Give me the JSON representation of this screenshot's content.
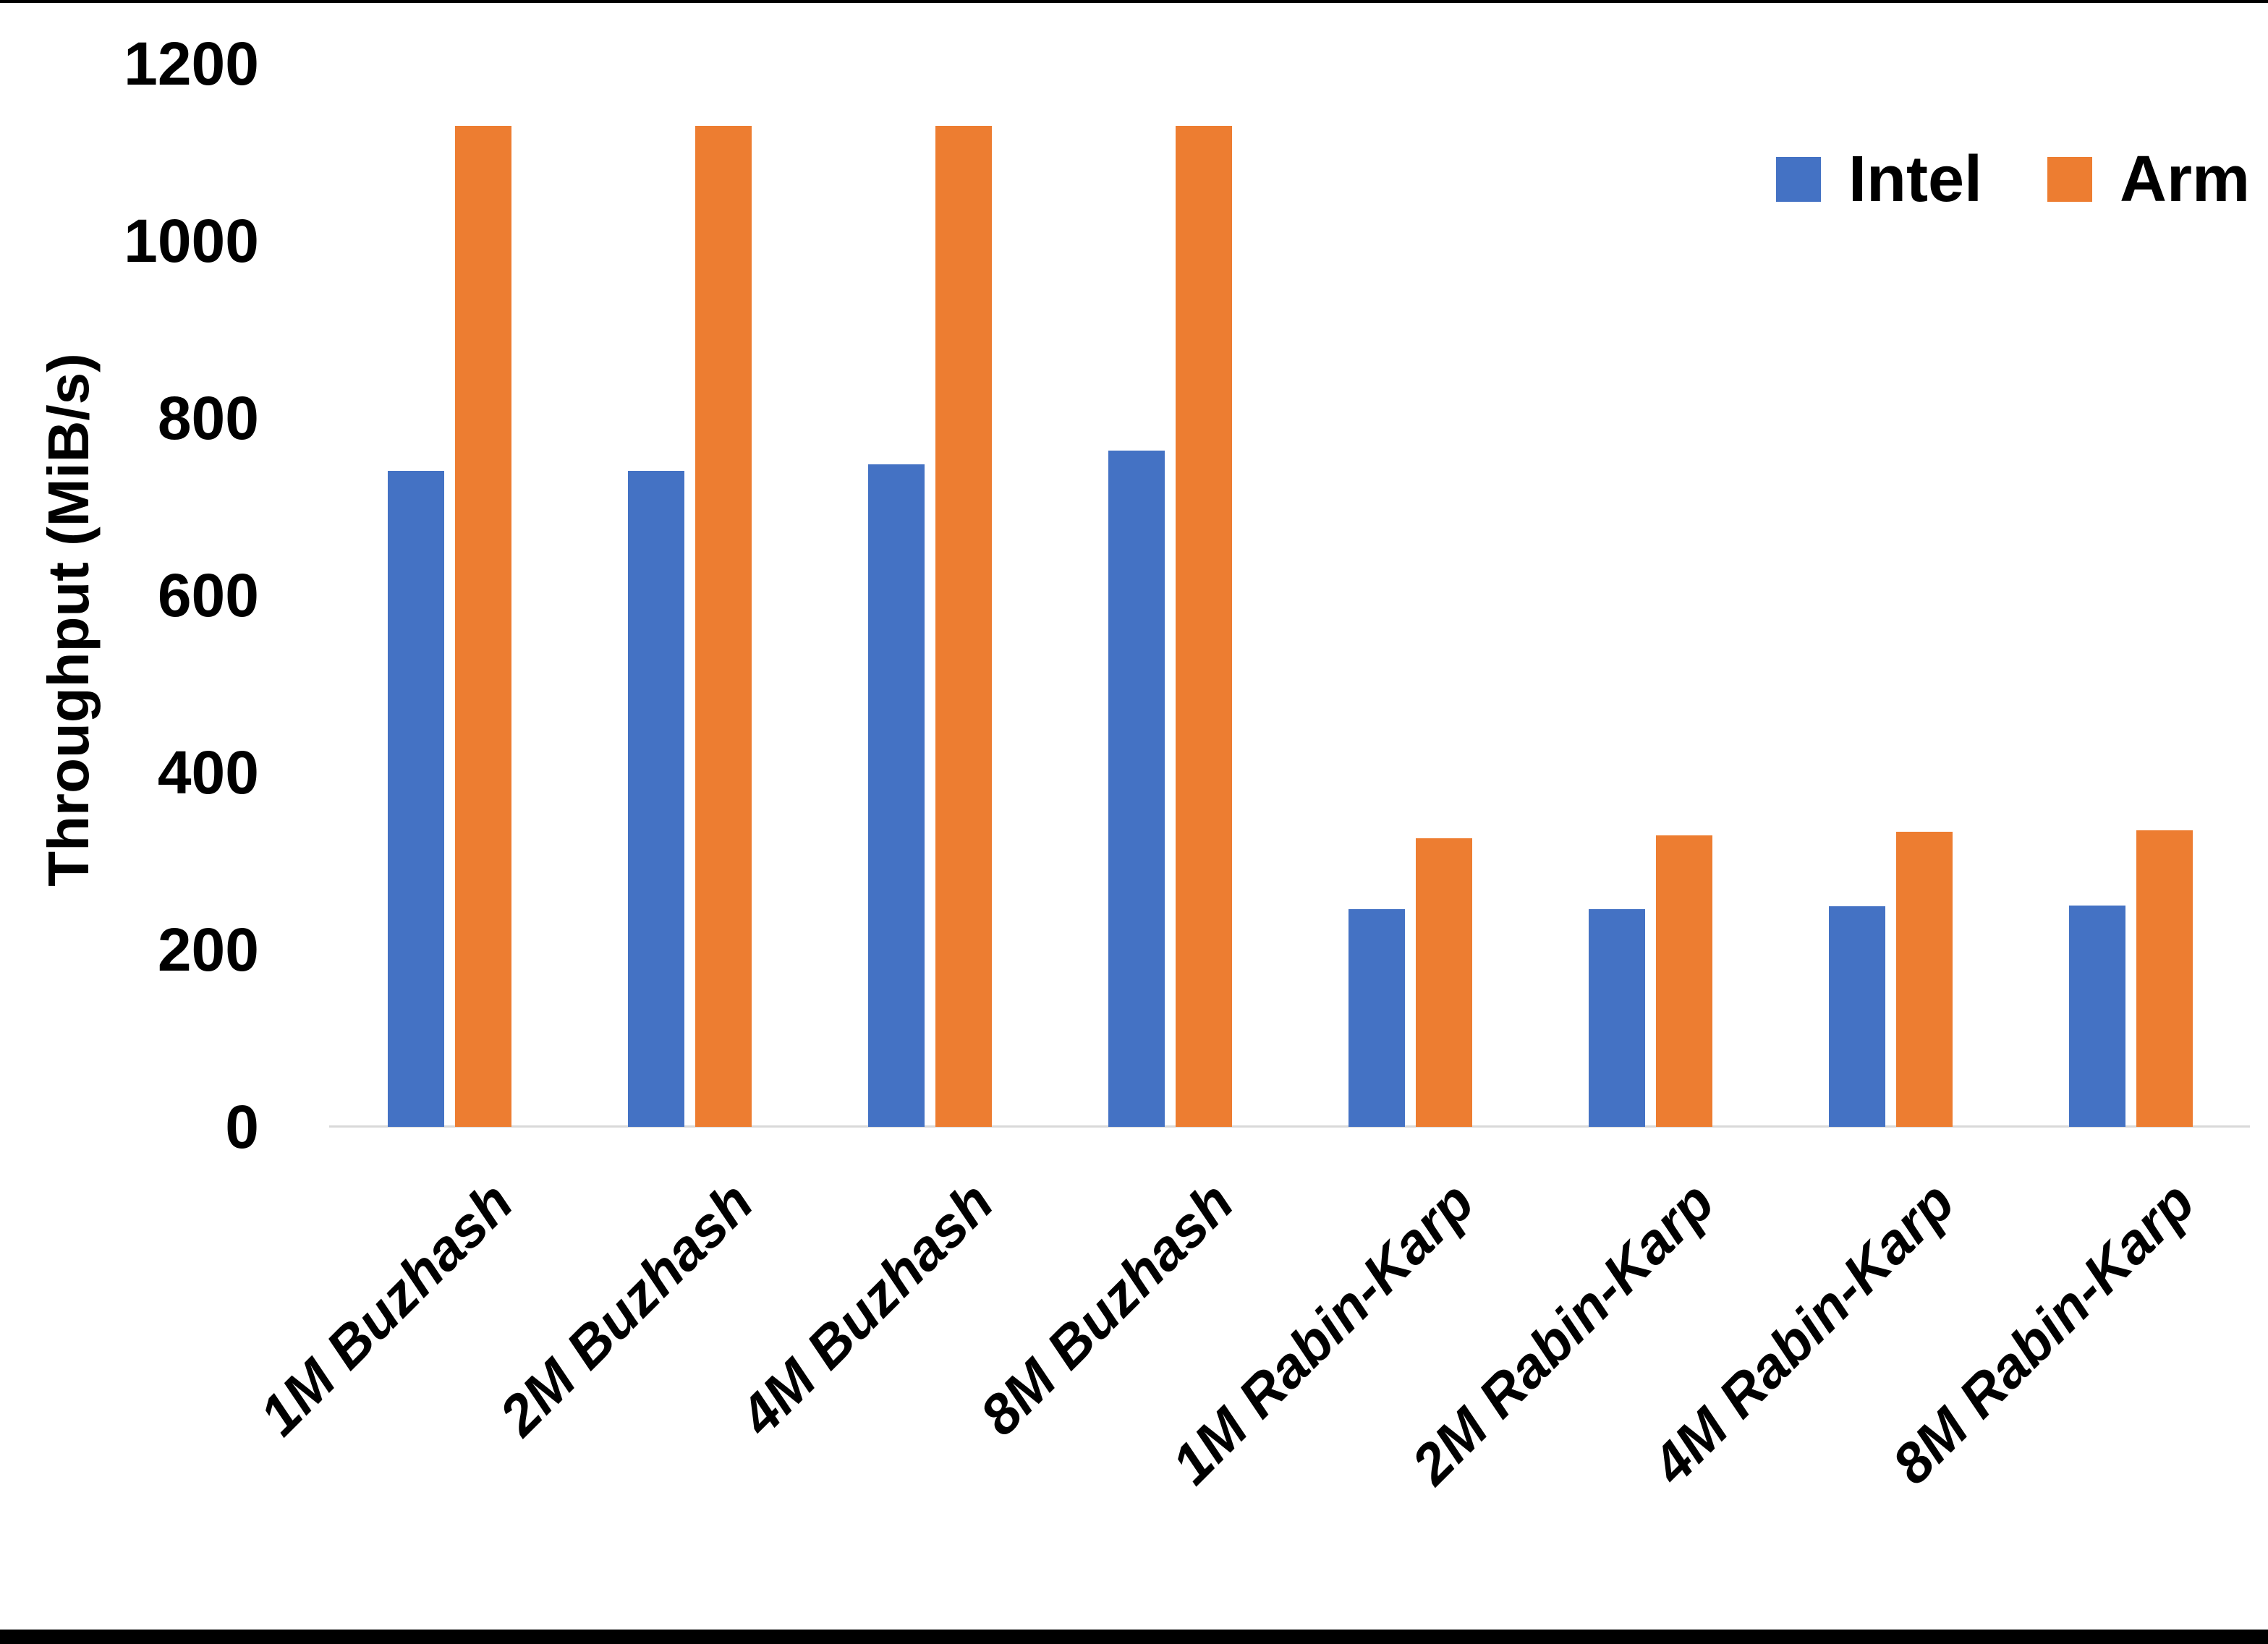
{
  "chart_data": {
    "type": "bar",
    "ylabel": "Throughput (MiB/s)",
    "xlabel": "",
    "ylim": [
      0,
      1200
    ],
    "yticks": [
      0,
      200,
      400,
      600,
      800,
      1000,
      1200
    ],
    "grid": false,
    "axis_line_color": "#D9D9D9",
    "legend_position": "top-right",
    "categories": [
      "1M Buzhash",
      "2M Buzhash",
      "4M Buzhash",
      "8M Buzhash",
      "1M Rabin-Karp",
      "2M Rabin-Karp",
      "4M Rabin-Karp",
      "8M Rabin-Karp"
    ],
    "series": [
      {
        "name": "Intel",
        "color": "#4472C4",
        "values": [
          740,
          740,
          748,
          763,
          246,
          246,
          249,
          250
        ]
      },
      {
        "name": "Arm",
        "color": "#ED7D31",
        "values": [
          1130,
          1130,
          1130,
          1130,
          326,
          329,
          333,
          335
        ]
      }
    ]
  },
  "legend": {
    "items": [
      {
        "label": "Intel",
        "color": "#4472C4"
      },
      {
        "label": "Arm",
        "color": "#ED7D31"
      }
    ]
  },
  "frame": {
    "top_line_color": "#000000",
    "bottom_bar_color": "#000000"
  }
}
